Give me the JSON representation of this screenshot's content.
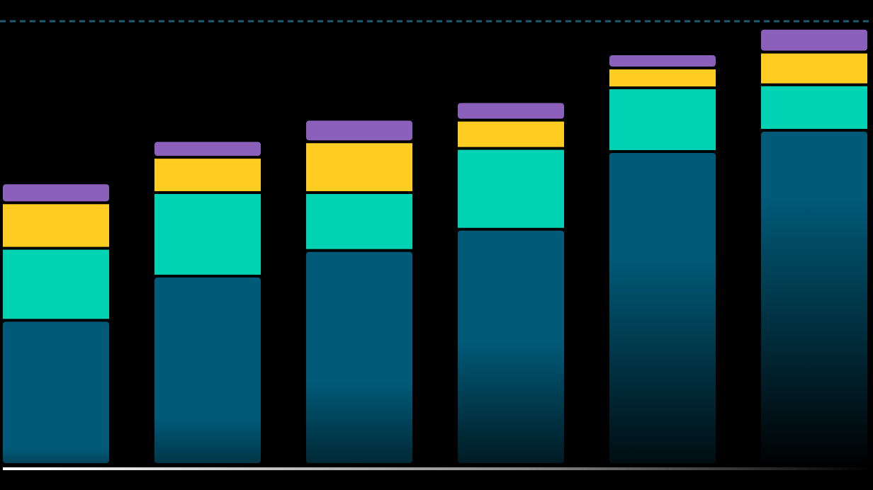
{
  "chart_data": {
    "type": "stacked-bar",
    "categories": [
      null,
      null,
      null,
      null,
      null,
      null
    ],
    "series": [
      {
        "color": "#005a78",
        "values": [
          32,
          42,
          47.8,
          52.6,
          70.2,
          75
        ]
      },
      {
        "color": "#00d3b4",
        "values": [
          16.3,
          18.9,
          13.1,
          18.3,
          14.4,
          10.3
        ]
      },
      {
        "color": "#ffcc22",
        "values": [
          10.3,
          8,
          11.5,
          6.4,
          4.5,
          7.4
        ]
      },
      {
        "color": "#8b60bb",
        "values": [
          4.5,
          3.8,
          5.1,
          4.2,
          3.2,
          5.4
        ]
      }
    ],
    "ylim": [
      0,
      100
    ],
    "reference_line": 100,
    "reference_color": "#1f5c73"
  }
}
